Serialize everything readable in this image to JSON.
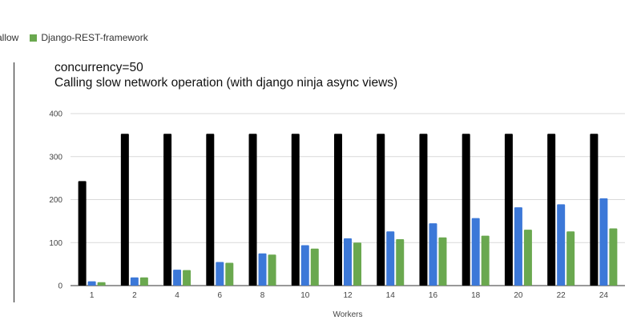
{
  "legend": {
    "items": [
      {
        "label": "mallow",
        "color": "#1a1a1a",
        "clipped": true
      },
      {
        "label": "Django-REST-framework",
        "color": "#6aa84f",
        "clipped": false
      }
    ]
  },
  "chart_data": {
    "type": "bar",
    "title": "concurrency=50",
    "subtitle": "Calling slow network operation  (with django ninja async views)",
    "xlabel": "Workers",
    "ylabel": "",
    "ylim": [
      0,
      400
    ],
    "yticks": [
      0,
      100,
      200,
      300,
      400
    ],
    "grid": true,
    "legend_position": "top-left",
    "categories": [
      "1",
      "2",
      "4",
      "6",
      "8",
      "10",
      "12",
      "14",
      "16",
      "18",
      "20",
      "22",
      "24"
    ],
    "series": [
      {
        "name": "",
        "color": "#000000",
        "values": [
          243,
          353,
          353,
          353,
          353,
          353,
          353,
          353,
          353,
          353,
          353,
          353,
          353
        ]
      },
      {
        "name": "",
        "color": "#3c78d8",
        "values": [
          10,
          19,
          37,
          55,
          75,
          94,
          110,
          126,
          145,
          157,
          182,
          189,
          203
        ]
      },
      {
        "name": "Django-REST-framework",
        "color": "#6aa84f",
        "values": [
          8,
          19,
          36,
          53,
          72,
          86,
          100,
          108,
          112,
          116,
          130,
          126,
          133
        ]
      }
    ]
  }
}
